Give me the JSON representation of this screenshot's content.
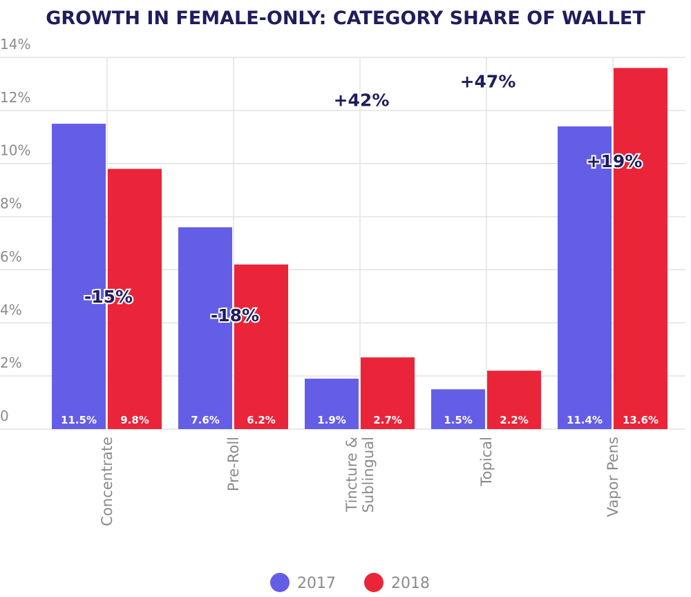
{
  "chart_data": {
    "type": "bar",
    "title": "GROWTH IN FEMALE-ONLY: CATEGORY SHARE OF WALLET",
    "categories": [
      [
        "Concentrate"
      ],
      [
        "Pre-Roll"
      ],
      [
        "Tincture &",
        "Sublingual"
      ],
      [
        "Topical"
      ],
      [
        "Vapor Pens"
      ]
    ],
    "series": [
      {
        "name": "2017",
        "color": "#645ee6",
        "values": [
          11.5,
          7.6,
          1.9,
          1.5,
          11.4
        ],
        "labels": [
          "11.5%",
          "7.6%",
          "1.9%",
          "1.5%",
          "11.4%"
        ]
      },
      {
        "name": "2018",
        "color": "#ea2439",
        "values": [
          9.8,
          6.2,
          2.7,
          2.2,
          13.6
        ],
        "labels": [
          "9.8%",
          "6.2%",
          "2.7%",
          "2.2%",
          "13.6%"
        ]
      }
    ],
    "annotations": [
      {
        "text": "-15%",
        "y": 5.0
      },
      {
        "text": "-18%",
        "y": 4.3
      },
      {
        "text": "+42%",
        "y": 12.4
      },
      {
        "text": "+47%",
        "y": 13.1
      },
      {
        "text": "+19%",
        "y": 10.1
      }
    ],
    "yticks": [
      0,
      2,
      4,
      6,
      8,
      10,
      12,
      14
    ],
    "ytick_labels": [
      "0",
      "2%",
      "4%",
      "6%",
      "8%",
      "10%",
      "12%",
      "14%"
    ],
    "ylim": [
      0,
      14
    ],
    "grid": true,
    "legend_position": "bottom"
  }
}
